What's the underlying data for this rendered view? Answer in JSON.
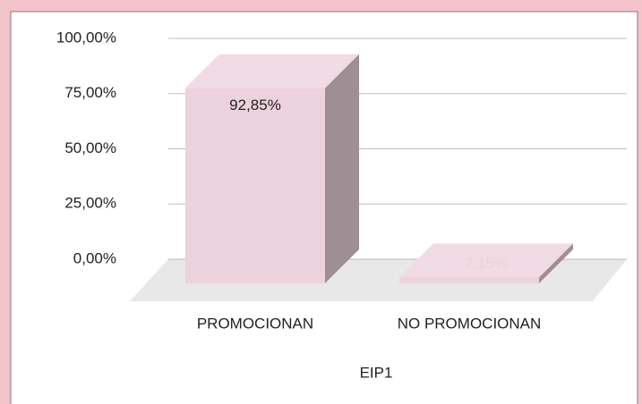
{
  "chart_data": {
    "type": "bar3d",
    "x_label": "EIP1",
    "categories": [
      "PROMOCIONAN",
      "NO PROMOCIONAN"
    ],
    "values": [
      92.85,
      7.15
    ],
    "value_labels": [
      "92,85%",
      "7,15%"
    ],
    "color": "#ecd2dd",
    "ylim": [
      0,
      100
    ],
    "yticks": [
      {
        "value": 0,
        "label": "0,00%"
      },
      {
        "value": 25,
        "label": "25,00%"
      },
      {
        "value": 50,
        "label": "50,00%"
      },
      {
        "value": 75,
        "label": "75,00%"
      },
      {
        "value": 100,
        "label": "100,00%"
      }
    ],
    "grid": true
  }
}
